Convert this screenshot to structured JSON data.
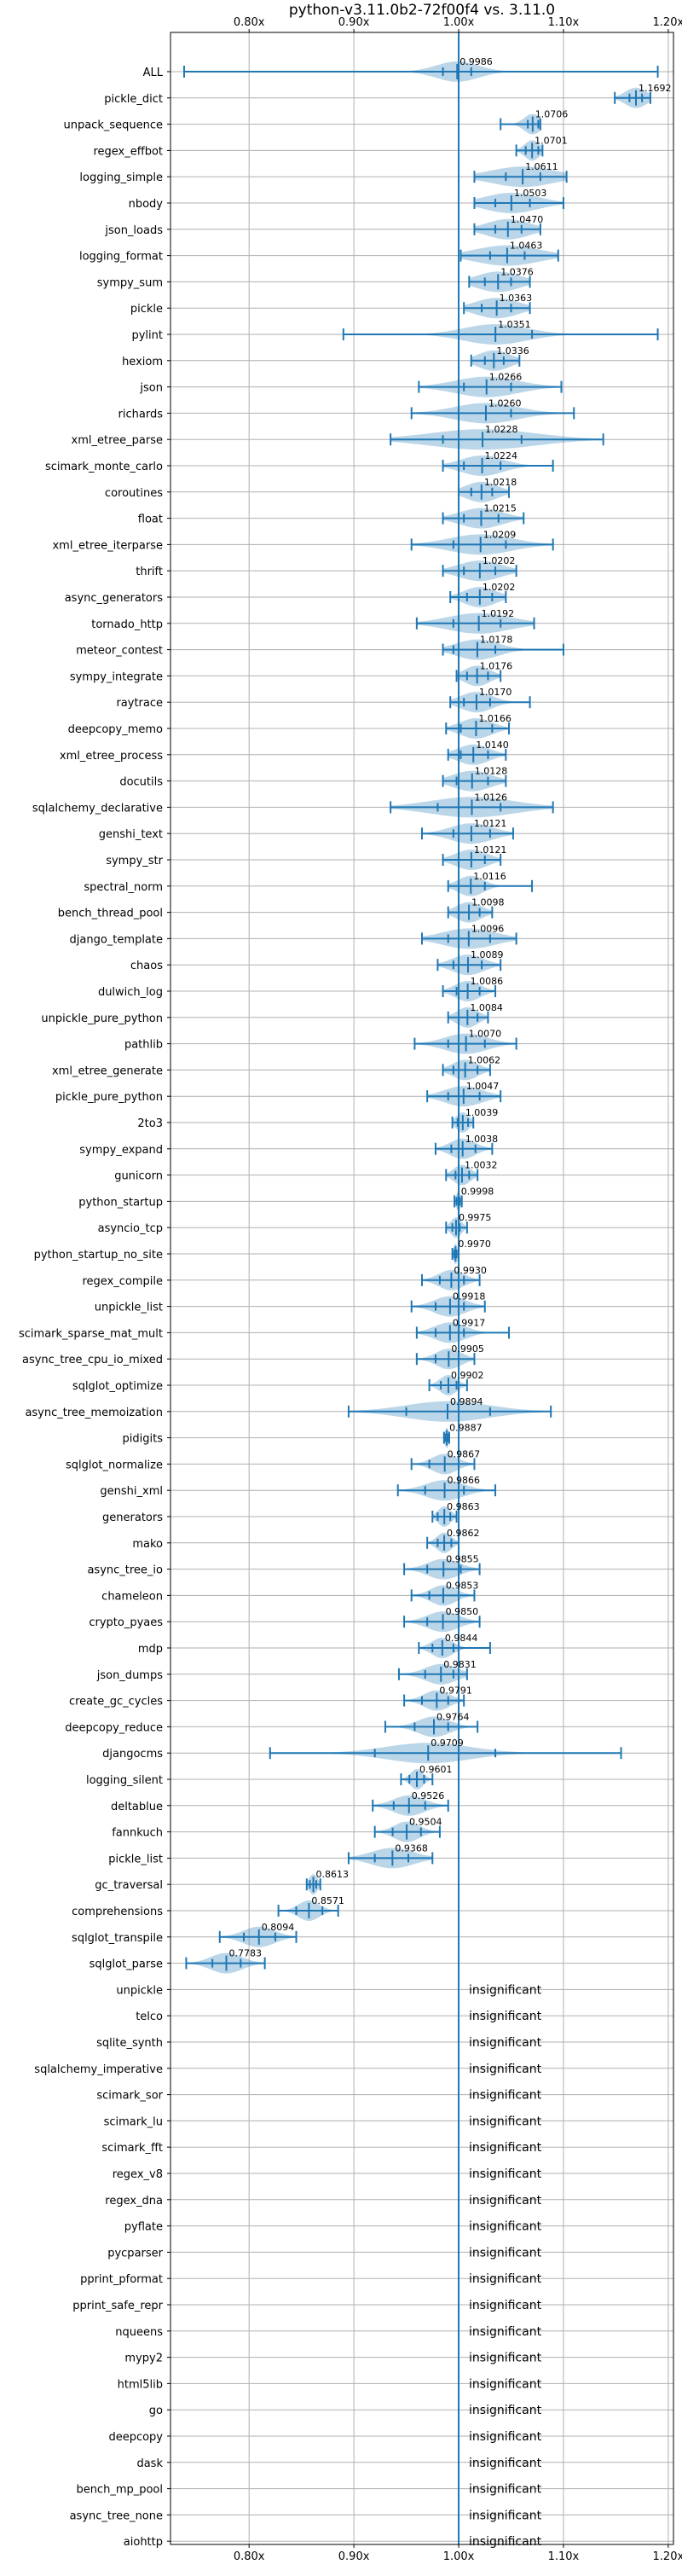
{
  "chart_data": {
    "type": "violin",
    "title": "python-v3.11.0b2-72f00f4 vs. 3.11.0",
    "xlabel": "",
    "ylabel": "",
    "x_scale": "linear",
    "xlim": [
      0.725,
      1.205
    ],
    "x_ticks": [
      0.8,
      0.9,
      1.0,
      1.1,
      1.2
    ],
    "x_tick_labels": [
      "0.80x",
      "0.90x",
      "1.00x",
      "1.10x",
      "1.20x"
    ],
    "reference_line": 1.0,
    "grid": true,
    "benchmarks": [
      {
        "name": "ALL",
        "label": "0.9986",
        "mean": 0.9986,
        "min": 0.738,
        "max": 1.19,
        "q1": 0.985,
        "q3": 1.012,
        "spread": 0.02
      },
      {
        "name": "pickle_dict",
        "label": "1.1692",
        "mean": 1.1692,
        "min": 1.149,
        "max": 1.183,
        "q1": 1.163,
        "q3": 1.175,
        "spread": 0.01
      },
      {
        "name": "unpack_sequence",
        "label": "1.0706",
        "mean": 1.0706,
        "min": 1.04,
        "max": 1.078,
        "q1": 1.066,
        "q3": 1.076,
        "spread": 0.008
      },
      {
        "name": "regex_effbot",
        "label": "1.0701",
        "mean": 1.0701,
        "min": 1.055,
        "max": 1.08,
        "q1": 1.064,
        "q3": 1.076,
        "spread": 0.007
      },
      {
        "name": "logging_simple",
        "label": "1.0611",
        "mean": 1.0611,
        "min": 1.015,
        "max": 1.103,
        "q1": 1.045,
        "q3": 1.078,
        "spread": 0.03
      },
      {
        "name": "nbody",
        "label": "1.0503",
        "mean": 1.0503,
        "min": 1.015,
        "max": 1.1,
        "q1": 1.035,
        "q3": 1.068,
        "spread": 0.025
      },
      {
        "name": "json_loads",
        "label": "1.0470",
        "mean": 1.047,
        "min": 1.015,
        "max": 1.078,
        "q1": 1.035,
        "q3": 1.06,
        "spread": 0.02
      },
      {
        "name": "logging_format",
        "label": "1.0463",
        "mean": 1.0463,
        "min": 1.002,
        "max": 1.095,
        "q1": 1.03,
        "q3": 1.063,
        "spread": 0.03
      },
      {
        "name": "sympy_sum",
        "label": "1.0376",
        "mean": 1.0376,
        "min": 1.01,
        "max": 1.068,
        "q1": 1.025,
        "q3": 1.05,
        "spread": 0.02
      },
      {
        "name": "pickle",
        "label": "1.0363",
        "mean": 1.0363,
        "min": 1.005,
        "max": 1.068,
        "q1": 1.022,
        "q3": 1.05,
        "spread": 0.02
      },
      {
        "name": "pylint",
        "label": "1.0351",
        "mean": 1.0351,
        "min": 0.89,
        "max": 1.19,
        "q1": 1.0,
        "q3": 1.07,
        "spread": 0.03
      },
      {
        "name": "hexiom",
        "label": "1.0336",
        "mean": 1.0336,
        "min": 1.012,
        "max": 1.058,
        "q1": 1.025,
        "q3": 1.043,
        "spread": 0.015
      },
      {
        "name": "json",
        "label": "1.0266",
        "mean": 1.0266,
        "min": 0.962,
        "max": 1.098,
        "q1": 1.005,
        "q3": 1.05,
        "spread": 0.03
      },
      {
        "name": "richards",
        "label": "1.0260",
        "mean": 1.026,
        "min": 0.955,
        "max": 1.11,
        "q1": 1.0,
        "q3": 1.05,
        "spread": 0.03
      },
      {
        "name": "xml_etree_parse",
        "label": "1.0228",
        "mean": 1.0228,
        "min": 0.935,
        "max": 1.138,
        "q1": 0.985,
        "q3": 1.06,
        "spread": 0.05
      },
      {
        "name": "scimark_monte_carlo",
        "label": "1.0224",
        "mean": 1.0224,
        "min": 0.985,
        "max": 1.09,
        "q1": 1.005,
        "q3": 1.04,
        "spread": 0.02
      },
      {
        "name": "coroutines",
        "label": "1.0218",
        "mean": 1.0218,
        "min": 1.0,
        "max": 1.048,
        "q1": 1.012,
        "q3": 1.032,
        "spread": 0.015
      },
      {
        "name": "float",
        "label": "1.0215",
        "mean": 1.0215,
        "min": 0.985,
        "max": 1.062,
        "q1": 1.005,
        "q3": 1.038,
        "spread": 0.02
      },
      {
        "name": "xml_etree_iterparse",
        "label": "1.0209",
        "mean": 1.0209,
        "min": 0.955,
        "max": 1.09,
        "q1": 0.995,
        "q3": 1.045,
        "spread": 0.03
      },
      {
        "name": "thrift",
        "label": "1.0202",
        "mean": 1.0202,
        "min": 0.985,
        "max": 1.055,
        "q1": 1.005,
        "q3": 1.035,
        "spread": 0.02
      },
      {
        "name": "async_generators",
        "label": "1.0202",
        "mean": 1.0202,
        "min": 0.992,
        "max": 1.045,
        "q1": 1.008,
        "q3": 1.032,
        "spread": 0.015
      },
      {
        "name": "tornado_http",
        "label": "1.0192",
        "mean": 1.0192,
        "min": 0.96,
        "max": 1.072,
        "q1": 0.995,
        "q3": 1.04,
        "spread": 0.03
      },
      {
        "name": "meteor_contest",
        "label": "1.0178",
        "mean": 1.0178,
        "min": 0.985,
        "max": 1.1,
        "q1": 0.995,
        "q3": 1.035,
        "spread": 0.02
      },
      {
        "name": "sympy_integrate",
        "label": "1.0176",
        "mean": 1.0176,
        "min": 0.998,
        "max": 1.04,
        "q1": 1.008,
        "q3": 1.028,
        "spread": 0.012
      },
      {
        "name": "raytrace",
        "label": "1.0170",
        "mean": 1.017,
        "min": 0.992,
        "max": 1.068,
        "q1": 1.005,
        "q3": 1.03,
        "spread": 0.015
      },
      {
        "name": "deepcopy_memo",
        "label": "1.0166",
        "mean": 1.0166,
        "min": 0.988,
        "max": 1.048,
        "q1": 1.002,
        "q3": 1.032,
        "spread": 0.015
      },
      {
        "name": "xml_etree_process",
        "label": "1.0140",
        "mean": 1.014,
        "min": 0.99,
        "max": 1.045,
        "q1": 1.002,
        "q3": 1.028,
        "spread": 0.015
      },
      {
        "name": "docutils",
        "label": "1.0128",
        "mean": 1.0128,
        "min": 0.985,
        "max": 1.045,
        "q1": 0.998,
        "q3": 1.028,
        "spread": 0.018
      },
      {
        "name": "sqlalchemy_declarative",
        "label": "1.0126",
        "mean": 1.0126,
        "min": 0.935,
        "max": 1.09,
        "q1": 0.98,
        "q3": 1.04,
        "spread": 0.04
      },
      {
        "name": "genshi_text",
        "label": "1.0121",
        "mean": 1.0121,
        "min": 0.965,
        "max": 1.052,
        "q1": 0.995,
        "q3": 1.03,
        "spread": 0.02
      },
      {
        "name": "sympy_str",
        "label": "1.0121",
        "mean": 1.0121,
        "min": 0.985,
        "max": 1.04,
        "q1": 1.0,
        "q3": 1.025,
        "spread": 0.015
      },
      {
        "name": "spectral_norm",
        "label": "1.0116",
        "mean": 1.0116,
        "min": 0.99,
        "max": 1.07,
        "q1": 1.0,
        "q3": 1.025,
        "spread": 0.012
      },
      {
        "name": "bench_thread_pool",
        "label": "1.0098",
        "mean": 1.0098,
        "min": 0.99,
        "max": 1.032,
        "q1": 1.0,
        "q3": 1.02,
        "spread": 0.012
      },
      {
        "name": "django_template",
        "label": "1.0096",
        "mean": 1.0096,
        "min": 0.965,
        "max": 1.055,
        "q1": 0.99,
        "q3": 1.03,
        "spread": 0.025
      },
      {
        "name": "chaos",
        "label": "1.0089",
        "mean": 1.0089,
        "min": 0.98,
        "max": 1.04,
        "q1": 0.995,
        "q3": 1.022,
        "spread": 0.015
      },
      {
        "name": "dulwich_log",
        "label": "1.0086",
        "mean": 1.0086,
        "min": 0.985,
        "max": 1.035,
        "q1": 0.998,
        "q3": 1.02,
        "spread": 0.012
      },
      {
        "name": "unpickle_pure_python",
        "label": "1.0084",
        "mean": 1.0084,
        "min": 0.99,
        "max": 1.028,
        "q1": 1.0,
        "q3": 1.018,
        "spread": 0.01
      },
      {
        "name": "pathlib",
        "label": "1.0070",
        "mean": 1.007,
        "min": 0.958,
        "max": 1.055,
        "q1": 0.99,
        "q3": 1.025,
        "spread": 0.02
      },
      {
        "name": "xml_etree_generate",
        "label": "1.0062",
        "mean": 1.0062,
        "min": 0.985,
        "max": 1.03,
        "q1": 0.995,
        "q3": 1.018,
        "spread": 0.012
      },
      {
        "name": "pickle_pure_python",
        "label": "1.0047",
        "mean": 1.0047,
        "min": 0.97,
        "max": 1.04,
        "q1": 0.99,
        "q3": 1.02,
        "spread": 0.018
      },
      {
        "name": "2to3",
        "label": "1.0039",
        "mean": 1.0039,
        "min": 0.994,
        "max": 1.014,
        "q1": 0.999,
        "q3": 1.009,
        "spread": 0.006
      },
      {
        "name": "sympy_expand",
        "label": "1.0038",
        "mean": 1.0038,
        "min": 0.978,
        "max": 1.032,
        "q1": 0.993,
        "q3": 1.016,
        "spread": 0.012
      },
      {
        "name": "gunicorn",
        "label": "1.0032",
        "mean": 1.0032,
        "min": 0.988,
        "max": 1.018,
        "q1": 0.997,
        "q3": 1.01,
        "spread": 0.008
      },
      {
        "name": "python_startup",
        "label": "0.9998",
        "mean": 0.9998,
        "min": 0.996,
        "max": 1.003,
        "q1": 0.998,
        "q3": 1.001,
        "spread": 0.002
      },
      {
        "name": "asyncio_tcp",
        "label": "0.9975",
        "mean": 0.9975,
        "min": 0.988,
        "max": 1.008,
        "q1": 0.994,
        "q3": 1.001,
        "spread": 0.005
      },
      {
        "name": "python_startup_no_site",
        "label": "0.9970",
        "mean": 0.997,
        "min": 0.994,
        "max": 1.0,
        "q1": 0.996,
        "q3": 0.998,
        "spread": 0.002
      },
      {
        "name": "regex_compile",
        "label": "0.9930",
        "mean": 0.993,
        "min": 0.965,
        "max": 1.02,
        "q1": 0.982,
        "q3": 1.005,
        "spread": 0.012
      },
      {
        "name": "unpickle_list",
        "label": "0.9918",
        "mean": 0.9918,
        "min": 0.955,
        "max": 1.025,
        "q1": 0.978,
        "q3": 1.005,
        "spread": 0.015
      },
      {
        "name": "scimark_sparse_mat_mult",
        "label": "0.9917",
        "mean": 0.9917,
        "min": 0.96,
        "max": 1.048,
        "q1": 0.978,
        "q3": 1.005,
        "spread": 0.015
      },
      {
        "name": "async_tree_cpu_io_mixed",
        "label": "0.9905",
        "mean": 0.9905,
        "min": 0.96,
        "max": 1.015,
        "q1": 0.978,
        "q3": 1.0,
        "spread": 0.012
      },
      {
        "name": "sqlglot_optimize",
        "label": "0.9902",
        "mean": 0.9902,
        "min": 0.972,
        "max": 1.008,
        "q1": 0.983,
        "q3": 0.998,
        "spread": 0.008
      },
      {
        "name": "async_tree_memoization",
        "label": "0.9894",
        "mean": 0.9894,
        "min": 0.895,
        "max": 1.088,
        "q1": 0.95,
        "q3": 1.03,
        "spread": 0.04
      },
      {
        "name": "pidigits",
        "label": "0.9887",
        "mean": 0.9887,
        "min": 0.986,
        "max": 0.991,
        "q1": 0.987,
        "q3": 0.99,
        "spread": 0.002
      },
      {
        "name": "sqlglot_normalize",
        "label": "0.9867",
        "mean": 0.9867,
        "min": 0.955,
        "max": 1.015,
        "q1": 0.972,
        "q3": 1.0,
        "spread": 0.012
      },
      {
        "name": "genshi_xml",
        "label": "0.9866",
        "mean": 0.9866,
        "min": 0.942,
        "max": 1.035,
        "q1": 0.968,
        "q3": 1.005,
        "spread": 0.018
      },
      {
        "name": "generators",
        "label": "0.9863",
        "mean": 0.9863,
        "min": 0.975,
        "max": 0.998,
        "q1": 0.98,
        "q3": 0.992,
        "spread": 0.006
      },
      {
        "name": "mako",
        "label": "0.9862",
        "mean": 0.9862,
        "min": 0.97,
        "max": 1.0,
        "q1": 0.98,
        "q3": 0.993,
        "spread": 0.007
      },
      {
        "name": "async_tree_io",
        "label": "0.9855",
        "mean": 0.9855,
        "min": 0.948,
        "max": 1.02,
        "q1": 0.97,
        "q3": 1.002,
        "spread": 0.015
      },
      {
        "name": "chameleon",
        "label": "0.9853",
        "mean": 0.9853,
        "min": 0.955,
        "max": 1.015,
        "q1": 0.972,
        "q3": 1.0,
        "spread": 0.012
      },
      {
        "name": "crypto_pyaes",
        "label": "0.9850",
        "mean": 0.985,
        "min": 0.948,
        "max": 1.02,
        "q1": 0.97,
        "q3": 1.0,
        "spread": 0.015
      },
      {
        "name": "mdp",
        "label": "0.9844",
        "mean": 0.9844,
        "min": 0.962,
        "max": 1.03,
        "q1": 0.975,
        "q3": 0.995,
        "spread": 0.01
      },
      {
        "name": "json_dumps",
        "label": "0.9831",
        "mean": 0.9831,
        "min": 0.943,
        "max": 1.008,
        "q1": 0.968,
        "q3": 0.995,
        "spread": 0.015
      },
      {
        "name": "create_gc_cycles",
        "label": "0.9791",
        "mean": 0.9791,
        "min": 0.948,
        "max": 1.005,
        "q1": 0.965,
        "q3": 0.99,
        "spread": 0.012
      },
      {
        "name": "deepcopy_reduce",
        "label": "0.9764",
        "mean": 0.9764,
        "min": 0.93,
        "max": 1.018,
        "q1": 0.958,
        "q3": 0.99,
        "spread": 0.015
      },
      {
        "name": "djangocms",
        "label": "0.9709",
        "mean": 0.9709,
        "min": 0.82,
        "max": 1.155,
        "q1": 0.92,
        "q3": 1.035,
        "spread": 0.04
      },
      {
        "name": "logging_silent",
        "label": "0.9601",
        "mean": 0.9601,
        "min": 0.945,
        "max": 0.975,
        "q1": 0.953,
        "q3": 0.967,
        "spread": 0.006
      },
      {
        "name": "deltablue",
        "label": "0.9526",
        "mean": 0.9526,
        "min": 0.918,
        "max": 0.99,
        "q1": 0.938,
        "q3": 0.968,
        "spread": 0.015
      },
      {
        "name": "fannkuch",
        "label": "0.9504",
        "mean": 0.9504,
        "min": 0.92,
        "max": 0.982,
        "q1": 0.937,
        "q3": 0.964,
        "spread": 0.012
      },
      {
        "name": "pickle_list",
        "label": "0.9368",
        "mean": 0.9368,
        "min": 0.895,
        "max": 0.975,
        "q1": 0.92,
        "q3": 0.952,
        "spread": 0.02
      },
      {
        "name": "gc_traversal",
        "label": "0.8613",
        "mean": 0.8613,
        "min": 0.855,
        "max": 0.868,
        "q1": 0.858,
        "q3": 0.864,
        "spread": 0.004
      },
      {
        "name": "comprehensions",
        "label": "0.8571",
        "mean": 0.8571,
        "min": 0.828,
        "max": 0.885,
        "q1": 0.845,
        "q3": 0.87,
        "spread": 0.01
      },
      {
        "name": "sqlglot_transpile",
        "label": "0.8094",
        "mean": 0.8094,
        "min": 0.772,
        "max": 0.845,
        "q1": 0.795,
        "q3": 0.825,
        "spread": 0.015
      },
      {
        "name": "sqlglot_parse",
        "label": "0.7783",
        "mean": 0.7783,
        "min": 0.74,
        "max": 0.815,
        "q1": 0.765,
        "q3": 0.792,
        "spread": 0.015
      },
      {
        "name": "unpickle",
        "label": "insignificant"
      },
      {
        "name": "telco",
        "label": "insignificant"
      },
      {
        "name": "sqlite_synth",
        "label": "insignificant"
      },
      {
        "name": "sqlalchemy_imperative",
        "label": "insignificant"
      },
      {
        "name": "scimark_sor",
        "label": "insignificant"
      },
      {
        "name": "scimark_lu",
        "label": "insignificant"
      },
      {
        "name": "scimark_fft",
        "label": "insignificant"
      },
      {
        "name": "regex_v8",
        "label": "insignificant"
      },
      {
        "name": "regex_dna",
        "label": "insignificant"
      },
      {
        "name": "pyflate",
        "label": "insignificant"
      },
      {
        "name": "pycparser",
        "label": "insignificant"
      },
      {
        "name": "pprint_pformat",
        "label": "insignificant"
      },
      {
        "name": "pprint_safe_repr",
        "label": "insignificant"
      },
      {
        "name": "nqueens",
        "label": "insignificant"
      },
      {
        "name": "mypy2",
        "label": "insignificant"
      },
      {
        "name": "html5lib",
        "label": "insignificant"
      },
      {
        "name": "go",
        "label": "insignificant"
      },
      {
        "name": "deepcopy",
        "label": "insignificant"
      },
      {
        "name": "dask",
        "label": "insignificant"
      },
      {
        "name": "bench_mp_pool",
        "label": "insignificant"
      },
      {
        "name": "async_tree_none",
        "label": "insignificant"
      },
      {
        "name": "aiohttp",
        "label": "insignificant"
      }
    ]
  }
}
